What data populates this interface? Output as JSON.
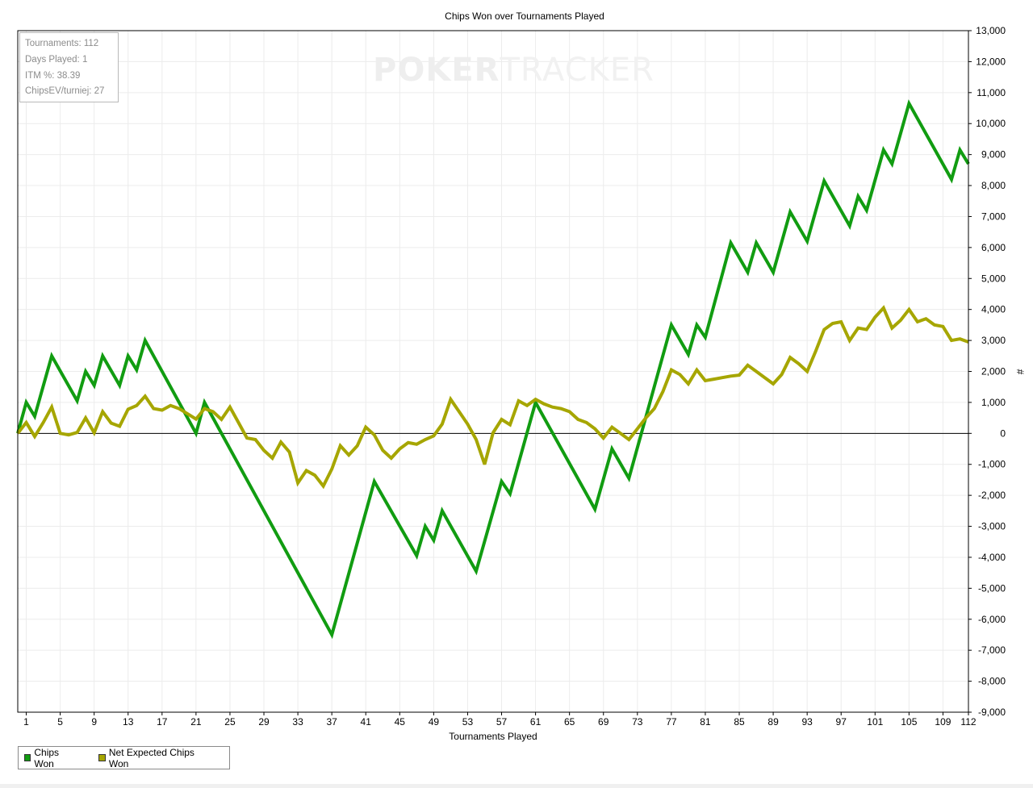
{
  "chart_data": {
    "type": "line",
    "title": "Chips Won over Tournaments Played",
    "xlabel": "Tournaments Played",
    "ylabel": "#",
    "xlim": [
      0,
      112
    ],
    "ylim": [
      -9000,
      13000
    ],
    "x_ticks": [
      1,
      5,
      9,
      13,
      17,
      21,
      25,
      29,
      33,
      37,
      41,
      45,
      49,
      53,
      57,
      61,
      65,
      69,
      73,
      77,
      81,
      85,
      89,
      93,
      97,
      101,
      105,
      109,
      112
    ],
    "y_ticks": [
      13000,
      12000,
      11000,
      10000,
      9000,
      8000,
      7000,
      6000,
      5000,
      4000,
      3000,
      2000,
      1000,
      0,
      -1000,
      -2000,
      -3000,
      -4000,
      -5000,
      -6000,
      -7000,
      -8000,
      -9000
    ],
    "y_tick_labels": [
      "13,000",
      "12,000",
      "11,000",
      "10,000",
      "9,000",
      "8,000",
      "7,000",
      "6,000",
      "5,000",
      "4,000",
      "3,000",
      "2,000",
      "1,000",
      "0",
      "-1,000",
      "-2,000",
      "-3,000",
      "-4,000",
      "-5,000",
      "-6,000",
      "-7,000",
      "-8,000",
      "-9,000"
    ],
    "grid": true,
    "legend_position": "bottom-left",
    "series": [
      {
        "name": "Chips Won",
        "color": "#119c11",
        "points": [
          [
            0,
            0
          ],
          [
            1,
            1000
          ],
          [
            2,
            550
          ],
          [
            4,
            2500
          ],
          [
            7,
            1050
          ],
          [
            8,
            2000
          ],
          [
            9,
            1550
          ],
          [
            10,
            2500
          ],
          [
            12,
            1550
          ],
          [
            13,
            2500
          ],
          [
            14,
            2050
          ],
          [
            15,
            3000
          ],
          [
            21,
            0
          ],
          [
            22,
            1000
          ],
          [
            37,
            -6500
          ],
          [
            42,
            -1550
          ],
          [
            47,
            -3950
          ],
          [
            48,
            -3000
          ],
          [
            49,
            -3450
          ],
          [
            50,
            -2500
          ],
          [
            54,
            -4450
          ],
          [
            57,
            -1550
          ],
          [
            58,
            -1950
          ],
          [
            61,
            1000
          ],
          [
            68,
            -2450
          ],
          [
            70,
            -500
          ],
          [
            72,
            -1450
          ],
          [
            77,
            3500
          ],
          [
            79,
            2550
          ],
          [
            80,
            3500
          ],
          [
            81,
            3100
          ],
          [
            84,
            6150
          ],
          [
            86,
            5200
          ],
          [
            87,
            6150
          ],
          [
            89,
            5200
          ],
          [
            91,
            7150
          ],
          [
            93,
            6200
          ],
          [
            95,
            8150
          ],
          [
            98,
            6700
          ],
          [
            99,
            7650
          ],
          [
            100,
            7200
          ],
          [
            102,
            9150
          ],
          [
            103,
            8700
          ],
          [
            105,
            10650
          ],
          [
            110,
            8200
          ],
          [
            111,
            9150
          ],
          [
            112,
            8700
          ]
        ]
      },
      {
        "name": "Net Expected Chips Won",
        "color": "#a6a600",
        "points": [
          [
            0,
            0
          ],
          [
            1,
            350
          ],
          [
            2,
            -100
          ],
          [
            3,
            350
          ],
          [
            4,
            850
          ],
          [
            5,
            0
          ],
          [
            6,
            -50
          ],
          [
            7,
            30
          ],
          [
            8,
            500
          ],
          [
            9,
            20
          ],
          [
            10,
            700
          ],
          [
            11,
            330
          ],
          [
            12,
            230
          ],
          [
            13,
            780
          ],
          [
            14,
            900
          ],
          [
            15,
            1200
          ],
          [
            16,
            800
          ],
          [
            17,
            750
          ],
          [
            18,
            900
          ],
          [
            19,
            800
          ],
          [
            20,
            630
          ],
          [
            21,
            460
          ],
          [
            22,
            800
          ],
          [
            23,
            700
          ],
          [
            24,
            450
          ],
          [
            25,
            850
          ],
          [
            26,
            350
          ],
          [
            27,
            -150
          ],
          [
            28,
            -200
          ],
          [
            29,
            -550
          ],
          [
            30,
            -800
          ],
          [
            31,
            -280
          ],
          [
            32,
            -600
          ],
          [
            33,
            -1600
          ],
          [
            34,
            -1200
          ],
          [
            35,
            -1350
          ],
          [
            36,
            -1700
          ],
          [
            37,
            -1150
          ],
          [
            38,
            -400
          ],
          [
            39,
            -700
          ],
          [
            40,
            -400
          ],
          [
            41,
            200
          ],
          [
            42,
            -50
          ],
          [
            43,
            -550
          ],
          [
            44,
            -800
          ],
          [
            45,
            -500
          ],
          [
            46,
            -300
          ],
          [
            47,
            -350
          ],
          [
            48,
            -200
          ],
          [
            49,
            -80
          ],
          [
            50,
            300
          ],
          [
            51,
            1100
          ],
          [
            52,
            700
          ],
          [
            53,
            300
          ],
          [
            54,
            -200
          ],
          [
            55,
            -1000
          ],
          [
            56,
            20
          ],
          [
            57,
            450
          ],
          [
            58,
            280
          ],
          [
            59,
            1050
          ],
          [
            60,
            900
          ],
          [
            61,
            1100
          ],
          [
            62,
            950
          ],
          [
            63,
            850
          ],
          [
            64,
            800
          ],
          [
            65,
            700
          ],
          [
            66,
            450
          ],
          [
            67,
            350
          ],
          [
            68,
            150
          ],
          [
            69,
            -150
          ],
          [
            70,
            200
          ],
          [
            71,
            0
          ],
          [
            72,
            -200
          ],
          [
            73,
            150
          ],
          [
            74,
            500
          ],
          [
            75,
            800
          ],
          [
            76,
            1350
          ],
          [
            77,
            2050
          ],
          [
            78,
            1900
          ],
          [
            79,
            1600
          ],
          [
            80,
            2050
          ],
          [
            81,
            1700
          ],
          [
            82,
            1750
          ],
          [
            83,
            1800
          ],
          [
            84,
            1850
          ],
          [
            85,
            1880
          ],
          [
            86,
            2200
          ],
          [
            87,
            2000
          ],
          [
            88,
            1800
          ],
          [
            89,
            1600
          ],
          [
            90,
            1900
          ],
          [
            91,
            2450
          ],
          [
            92,
            2250
          ],
          [
            93,
            2000
          ],
          [
            94,
            2650
          ],
          [
            95,
            3350
          ],
          [
            96,
            3550
          ],
          [
            97,
            3600
          ],
          [
            98,
            3000
          ],
          [
            99,
            3400
          ],
          [
            100,
            3350
          ],
          [
            101,
            3750
          ],
          [
            102,
            4050
          ],
          [
            103,
            3400
          ],
          [
            104,
            3650
          ],
          [
            105,
            4000
          ],
          [
            106,
            3600
          ],
          [
            107,
            3700
          ],
          [
            108,
            3500
          ],
          [
            109,
            3450
          ],
          [
            110,
            3000
          ],
          [
            111,
            3050
          ],
          [
            112,
            2950
          ]
        ]
      }
    ]
  },
  "stats": [
    "Tournaments: 112",
    "Days Played: 1",
    "ITM %: 38.39",
    "ChipsEV/turniej: 27"
  ],
  "watermark": {
    "part1": "POKER",
    "part2": "TRACKER"
  },
  "legend": [
    {
      "label": "Chips Won",
      "color": "#119c11"
    },
    {
      "label": "Net Expected Chips Won",
      "color": "#a6a600"
    }
  ]
}
